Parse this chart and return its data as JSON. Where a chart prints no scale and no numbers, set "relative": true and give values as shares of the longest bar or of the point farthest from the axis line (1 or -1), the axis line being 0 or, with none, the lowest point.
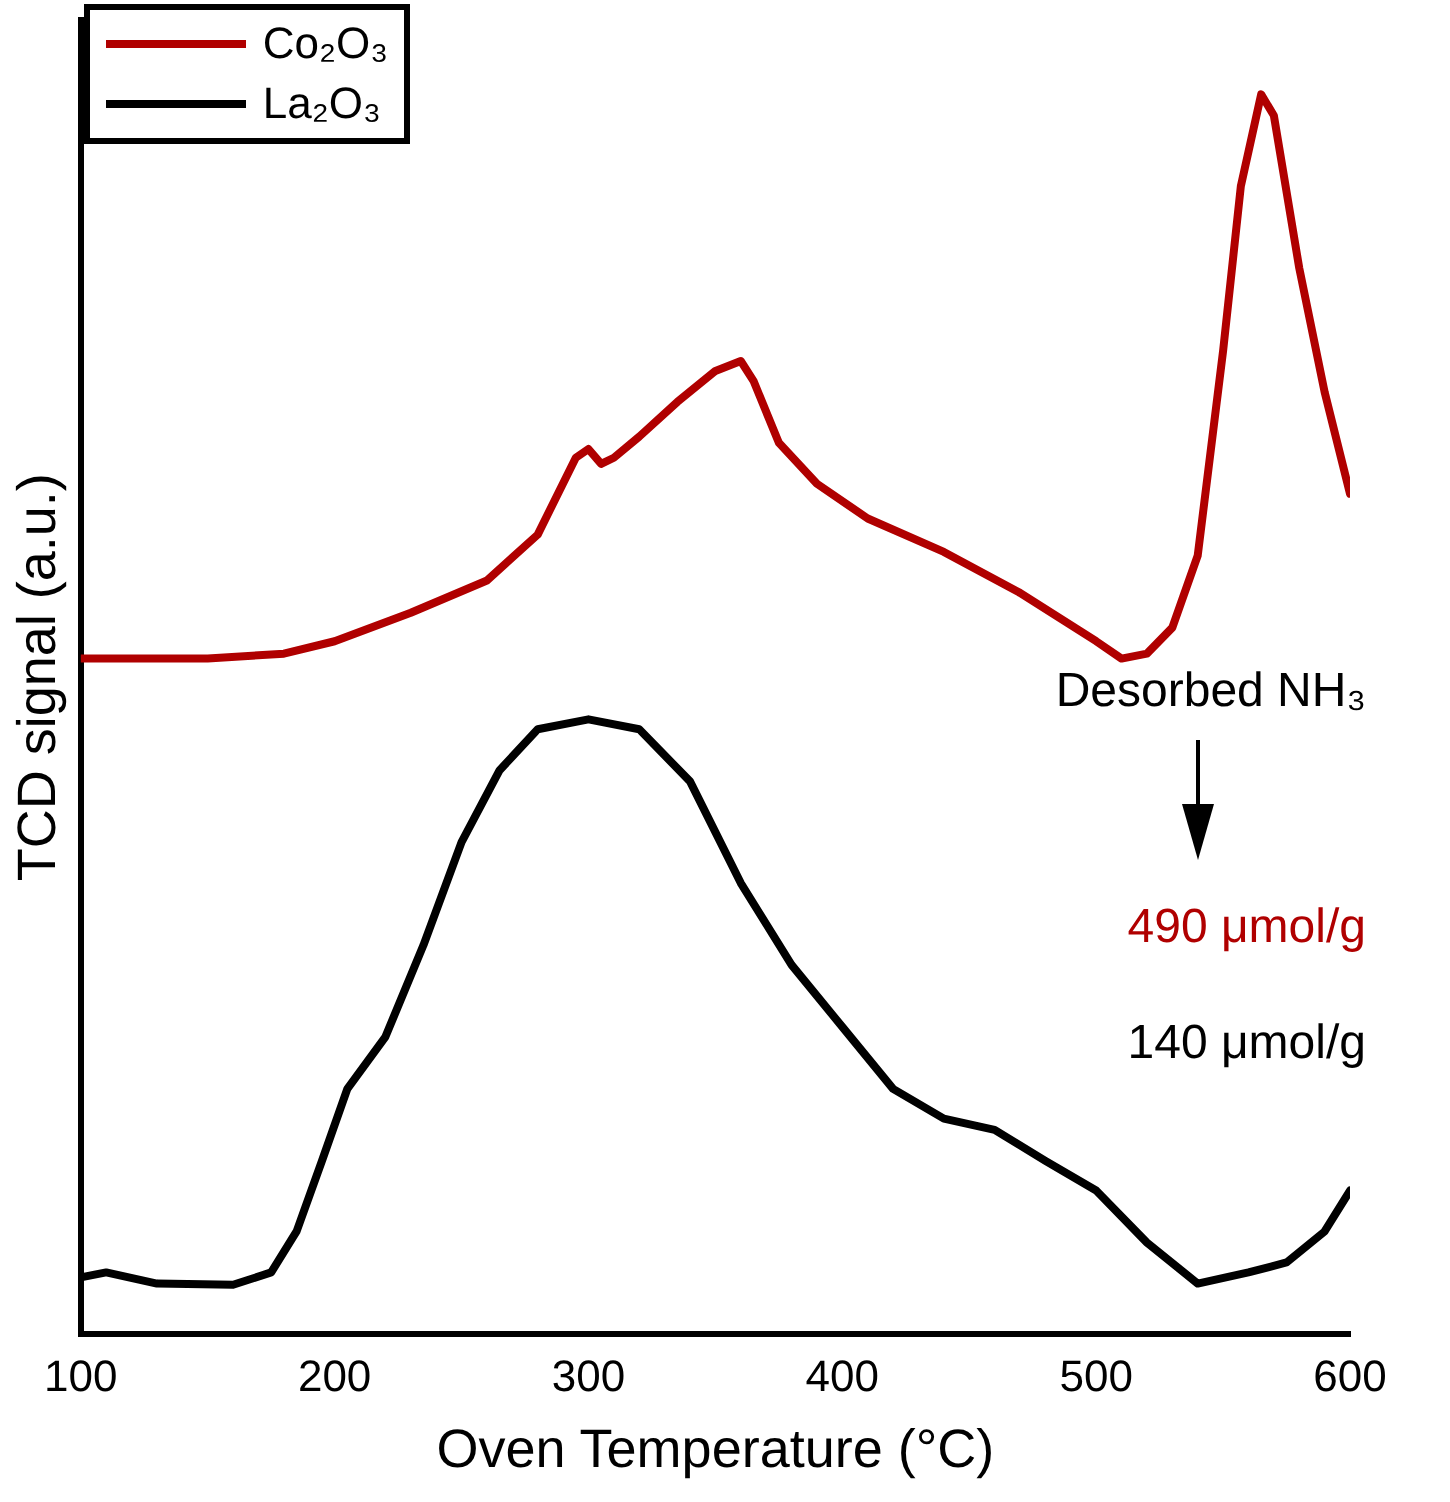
{
  "chart_data": {
    "type": "line",
    "relative": true,
    "xlabel": "Oven Temperature (°C)",
    "ylabel": "TCD signal (a.u.)",
    "xlim": [
      100,
      600
    ],
    "xticks": [
      100,
      200,
      300,
      400,
      500,
      600
    ],
    "grid": false,
    "legend": "top left",
    "marker": "none",
    "line_style": "solid",
    "annotations": [
      "Desorbed NH₃",
      "490 μmol/g",
      "140 μmol/g"
    ],
    "series": [
      {
        "name": "Co₂O₃",
        "color": "#b00000",
        "x": [
          100,
          150,
          180,
          200,
          230,
          260,
          280,
          295,
          300,
          305,
          310,
          320,
          335,
          350,
          360,
          365,
          375,
          390,
          410,
          440,
          470,
          500,
          510,
          520,
          530,
          540,
          550,
          557,
          565,
          570,
          580,
          590,
          600
        ],
        "values": [
          0.545,
          0.545,
          0.549,
          0.559,
          0.582,
          0.608,
          0.645,
          0.707,
          0.714,
          0.702,
          0.707,
          0.724,
          0.752,
          0.777,
          0.785,
          0.769,
          0.719,
          0.686,
          0.658,
          0.631,
          0.598,
          0.559,
          0.545,
          0.549,
          0.57,
          0.628,
          0.793,
          0.926,
          1,
          0.983,
          0.86,
          0.76,
          0.678
        ]
      },
      {
        "name": "La₂O₃",
        "color": "#000000",
        "x": [
          100,
          110,
          130,
          160,
          175,
          185,
          195,
          205,
          220,
          235,
          250,
          265,
          280,
          300,
          320,
          340,
          360,
          380,
          400,
          420,
          440,
          460,
          480,
          500,
          520,
          540,
          560,
          575,
          590,
          600
        ],
        "values": [
          0.046,
          0.05,
          0.041,
          0.04,
          0.05,
          0.083,
          0.14,
          0.198,
          0.24,
          0.314,
          0.397,
          0.455,
          0.488,
          0.496,
          0.488,
          0.446,
          0.364,
          0.298,
          0.248,
          0.198,
          0.174,
          0.165,
          0.14,
          0.116,
          0.074,
          0.041,
          0.05,
          0.058,
          0.083,
          0.116
        ]
      }
    ]
  }
}
